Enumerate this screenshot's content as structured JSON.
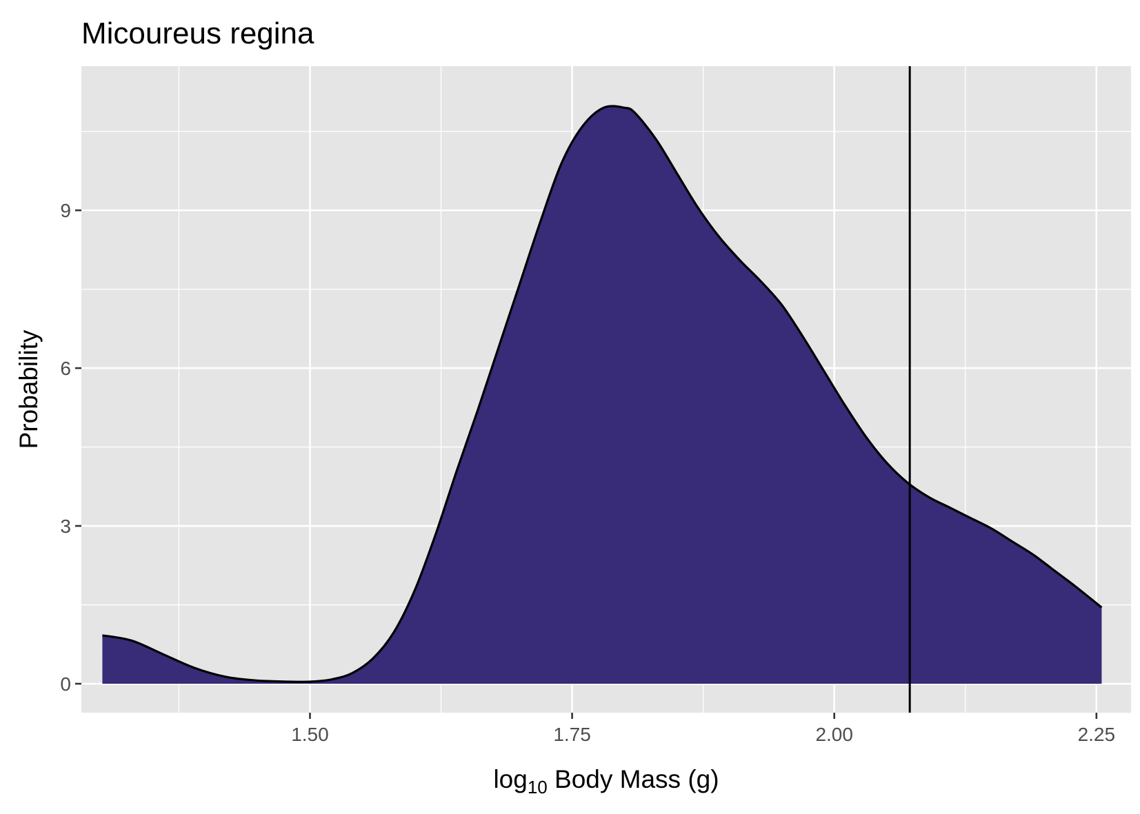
{
  "chart_data": {
    "type": "area",
    "title": "Micoureus regina",
    "xlabel": {
      "base": "log",
      "subscript": "10",
      "rest": " Body Mass (g)"
    },
    "ylabel": "Probability",
    "xlim": [
      1.282,
      2.283
    ],
    "ylim": [
      -0.55,
      11.74
    ],
    "x_ticks": [
      1.5,
      1.75,
      2.0,
      2.25
    ],
    "x_tick_labels": [
      "1.50",
      "1.75",
      "2.00",
      "2.25"
    ],
    "x_minor_ticks": [
      1.375,
      1.625,
      1.875,
      2.125
    ],
    "y_ticks": [
      0,
      3,
      6,
      9
    ],
    "y_tick_labels": [
      "0",
      "3",
      "6",
      "9"
    ],
    "y_minor_ticks": [
      1.5,
      4.5,
      7.5,
      10.5
    ],
    "grid": true,
    "series": [
      {
        "x": [
          1.302,
          1.33,
          1.36,
          1.39,
          1.42,
          1.45,
          1.48,
          1.5,
          1.52,
          1.54,
          1.56,
          1.58,
          1.6,
          1.62,
          1.64,
          1.66,
          1.68,
          1.7,
          1.72,
          1.74,
          1.76,
          1.78,
          1.8,
          1.81,
          1.83,
          1.85,
          1.87,
          1.89,
          1.91,
          1.93,
          1.95,
          1.97,
          1.99,
          2.01,
          2.03,
          2.05,
          2.07,
          2.09,
          2.11,
          2.13,
          2.15,
          2.17,
          2.19,
          2.21,
          2.23,
          2.255
        ],
        "y": [
          0.92,
          0.82,
          0.56,
          0.3,
          0.13,
          0.06,
          0.04,
          0.04,
          0.08,
          0.2,
          0.48,
          0.98,
          1.78,
          2.85,
          4.05,
          5.2,
          6.4,
          7.6,
          8.8,
          9.9,
          10.6,
          10.95,
          10.95,
          10.85,
          10.35,
          9.7,
          9.05,
          8.5,
          8.05,
          7.65,
          7.2,
          6.6,
          5.95,
          5.3,
          4.7,
          4.2,
          3.82,
          3.55,
          3.35,
          3.15,
          2.95,
          2.7,
          2.45,
          2.15,
          1.85,
          1.45
        ],
        "color": "#382b77"
      }
    ],
    "reference_line_x": 2.072,
    "colors": {
      "panel_background": "#e5e5e5",
      "grid": "#ffffff",
      "fill": "#382b77",
      "outline": "#000000",
      "tick": "#333333"
    }
  }
}
